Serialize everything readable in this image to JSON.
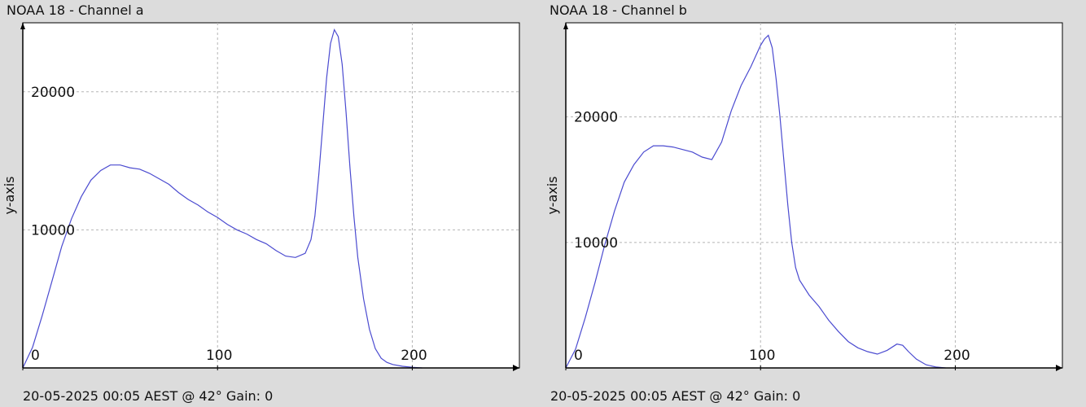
{
  "charts": [
    {
      "title": "NOAA 18 - Channel a",
      "footer": "20-05-2025 00:05 AEST @ 42° Gain: 0",
      "chart_data": {
        "type": "line",
        "title": "NOAA 18 - Channel a",
        "xlabel": "",
        "ylabel": "y-axis",
        "xlim": [
          0,
          255
        ],
        "ylim": [
          0,
          25000
        ],
        "x_ticks": [
          0,
          100,
          200
        ],
        "y_ticks": [
          10000,
          20000
        ],
        "grid": true,
        "series": [
          {
            "color": "#4b4bd0",
            "x": [
              0,
              5,
              10,
              15,
              20,
              25,
              30,
              35,
              40,
              45,
              50,
              55,
              60,
              65,
              70,
              75,
              80,
              85,
              90,
              95,
              100,
              105,
              110,
              115,
              120,
              125,
              130,
              135,
              140,
              145,
              148,
              150,
              152,
              154,
              156,
              158,
              160,
              162,
              164,
              166,
              168,
              170,
              172,
              175,
              178,
              181,
              184,
              187,
              190,
              195,
              200,
              205
            ],
            "y": [
              0,
              1500,
              3800,
              6300,
              8800,
              10800,
              12400,
              13600,
              14300,
              14700,
              14700,
              14500,
              14400,
              14100,
              13700,
              13300,
              12700,
              12200,
              11800,
              11300,
              10900,
              10400,
              10000,
              9700,
              9300,
              9000,
              8500,
              8100,
              8000,
              8300,
              9300,
              11000,
              14000,
              17500,
              21000,
              23500,
              24500,
              24000,
              22000,
              18500,
              14500,
              11000,
              8000,
              5000,
              2800,
              1400,
              700,
              400,
              250,
              120,
              50,
              0
            ]
          }
        ]
      }
    },
    {
      "title": "NOAA 18 - Channel b",
      "footer": "20-05-2025 00:05 AEST @ 42° Gain: 0",
      "chart_data": {
        "type": "line",
        "title": "NOAA 18 - Channel b",
        "xlabel": "",
        "ylabel": "y-axis",
        "xlim": [
          0,
          255
        ],
        "ylim": [
          0,
          27500
        ],
        "x_ticks": [
          0,
          100,
          200
        ],
        "y_ticks": [
          10000,
          20000
        ],
        "grid": true,
        "series": [
          {
            "color": "#4b4bd0",
            "x": [
              0,
              5,
              10,
              15,
              20,
              25,
              30,
              35,
              40,
              45,
              50,
              55,
              60,
              65,
              70,
              75,
              80,
              85,
              90,
              95,
              100,
              102,
              104,
              106,
              108,
              110,
              112,
              114,
              116,
              118,
              120,
              125,
              130,
              135,
              140,
              145,
              150,
              155,
              160,
              165,
              170,
              173,
              176,
              180,
              185,
              190,
              195
            ],
            "y": [
              0,
              1500,
              4000,
              6800,
              9800,
              12500,
              14800,
              16200,
              17200,
              17700,
              17700,
              17600,
              17400,
              17200,
              16800,
              16600,
              18000,
              20500,
              22500,
              24000,
              25700,
              26200,
              26500,
              25500,
              23000,
              20000,
              16500,
              13000,
              10000,
              8000,
              7000,
              5800,
              4900,
              3800,
              2900,
              2100,
              1600,
              1300,
              1100,
              1400,
              1900,
              1800,
              1300,
              700,
              250,
              80,
              0
            ]
          }
        ]
      }
    }
  ]
}
